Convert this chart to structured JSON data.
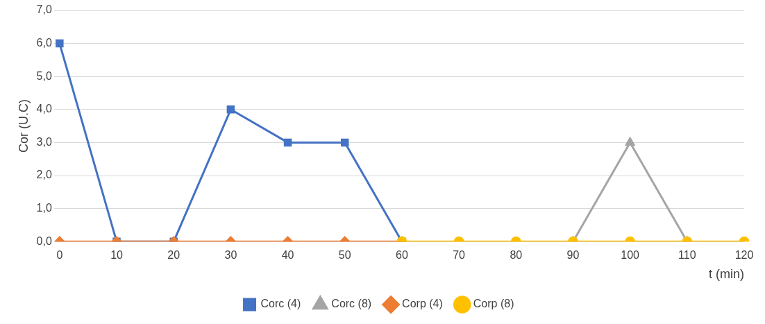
{
  "chart_data": {
    "type": "line",
    "xlabel": "t (min)",
    "ylabel": "Cor (U.C)",
    "categories": [
      "0",
      "10",
      "20",
      "30",
      "40",
      "50",
      "60",
      "70",
      "80",
      "90",
      "100",
      "110",
      "120"
    ],
    "ylim": [
      0,
      7
    ],
    "yticks": [
      {
        "value": 0,
        "label": "0,0"
      },
      {
        "value": 1,
        "label": "1,0"
      },
      {
        "value": 2,
        "label": "2,0"
      },
      {
        "value": 3,
        "label": "3,0"
      },
      {
        "value": 4,
        "label": "4,0"
      },
      {
        "value": 5,
        "label": "5,0"
      },
      {
        "value": 6,
        "label": "6,0"
      },
      {
        "value": 7,
        "label": "7,0"
      }
    ],
    "grid": "y",
    "legend": "bottom",
    "line_style": "solid",
    "series": [
      {
        "name": "Corc (4)",
        "color": "#4472c4",
        "marker": "square",
        "values": [
          6,
          0,
          0,
          4,
          3,
          3,
          0,
          null,
          null,
          null,
          null,
          null,
          null
        ]
      },
      {
        "name": "Corc (8)",
        "color": "#a5a5a5",
        "marker": "triangle",
        "values": [
          null,
          null,
          null,
          null,
          null,
          null,
          null,
          null,
          null,
          0,
          3,
          0,
          null
        ]
      },
      {
        "name": "Corp (4)",
        "color": "#ed7d31",
        "marker": "diamond",
        "values": [
          0,
          0,
          0,
          0,
          0,
          0,
          0,
          null,
          null,
          null,
          null,
          null,
          null
        ]
      },
      {
        "name": "Corp (8)",
        "color": "#ffc000",
        "marker": "circle",
        "values": [
          null,
          null,
          null,
          null,
          null,
          null,
          0,
          0,
          0,
          0,
          0,
          0,
          0
        ]
      }
    ]
  }
}
